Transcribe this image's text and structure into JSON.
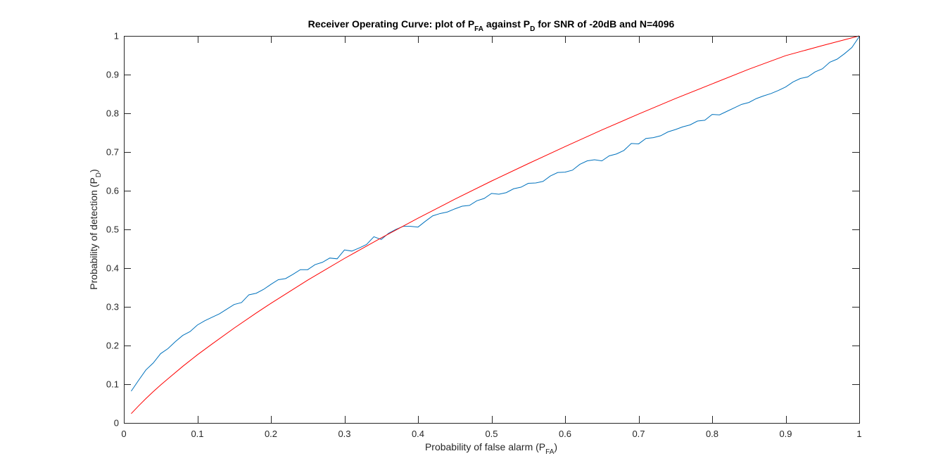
{
  "chart_data": {
    "type": "line",
    "title": {
      "prefix": "Receiver Operating Curve: plot of P",
      "sub1": "FA",
      "middle": " against P",
      "sub2": "D",
      "suffix": " for SNR of -20dB and N=4096"
    },
    "xlabel": {
      "main": "Probability of false alarm (P",
      "sub": "FA",
      "close": ")"
    },
    "ylabel": {
      "main": "Probability of detection (P",
      "sub": "D",
      "close": ")"
    },
    "xlim": [
      0,
      1
    ],
    "ylim": [
      0,
      1
    ],
    "xticks": [
      "0",
      "0.1",
      "0.2",
      "0.3",
      "0.4",
      "0.5",
      "0.6",
      "0.7",
      "0.8",
      "0.9",
      "1"
    ],
    "yticks": [
      "0",
      "0.1",
      "0.2",
      "0.3",
      "0.4",
      "0.5",
      "0.6",
      "0.7",
      "0.8",
      "0.9",
      "1"
    ],
    "grid": false,
    "series": [
      {
        "color": "#0072BD",
        "x": [
          0.01,
          0.02,
          0.03,
          0.04,
          0.05,
          0.06,
          0.07,
          0.08,
          0.09,
          0.1,
          0.11,
          0.12,
          0.13,
          0.14,
          0.15,
          0.16,
          0.17,
          0.18,
          0.19,
          0.2,
          0.21,
          0.22,
          0.23,
          0.24,
          0.25,
          0.26,
          0.27,
          0.28,
          0.29,
          0.3,
          0.31,
          0.32,
          0.33,
          0.34,
          0.35,
          0.36,
          0.37,
          0.38,
          0.39,
          0.4,
          0.41,
          0.42,
          0.43,
          0.44,
          0.45,
          0.46,
          0.47,
          0.48,
          0.49,
          0.5,
          0.51,
          0.52,
          0.53,
          0.54,
          0.55,
          0.56,
          0.57,
          0.58,
          0.59,
          0.6,
          0.61,
          0.62,
          0.63,
          0.64,
          0.65,
          0.66,
          0.67,
          0.68,
          0.69,
          0.7,
          0.71,
          0.72,
          0.73,
          0.74,
          0.75,
          0.76,
          0.77,
          0.78,
          0.79,
          0.8,
          0.81,
          0.82,
          0.83,
          0.84,
          0.85,
          0.86,
          0.87,
          0.88,
          0.89,
          0.9,
          0.91,
          0.92,
          0.93,
          0.94,
          0.95,
          0.96,
          0.97,
          0.98,
          0.99,
          1.0
        ],
        "y": [
          0.082,
          0.11,
          0.137,
          0.155,
          0.179,
          0.192,
          0.21,
          0.226,
          0.236,
          0.253,
          0.264,
          0.273,
          0.282,
          0.294,
          0.306,
          0.311,
          0.331,
          0.335,
          0.345,
          0.358,
          0.37,
          0.373,
          0.384,
          0.396,
          0.396,
          0.409,
          0.415,
          0.426,
          0.424,
          0.447,
          0.444,
          0.452,
          0.461,
          0.481,
          0.474,
          0.49,
          0.5,
          0.508,
          0.508,
          0.506,
          0.521,
          0.535,
          0.541,
          0.545,
          0.553,
          0.56,
          0.562,
          0.574,
          0.58,
          0.593,
          0.591,
          0.595,
          0.605,
          0.609,
          0.619,
          0.62,
          0.624,
          0.638,
          0.647,
          0.648,
          0.653,
          0.668,
          0.677,
          0.68,
          0.677,
          0.69,
          0.695,
          0.704,
          0.722,
          0.721,
          0.735,
          0.737,
          0.742,
          0.752,
          0.758,
          0.765,
          0.77,
          0.78,
          0.782,
          0.797,
          0.796,
          0.805,
          0.814,
          0.823,
          0.828,
          0.838,
          0.845,
          0.851,
          0.859,
          0.868,
          0.881,
          0.89,
          0.894,
          0.907,
          0.915,
          0.932,
          0.94,
          0.954,
          0.97,
          0.998
        ]
      },
      {
        "color": "#FF0000",
        "x": [
          0.01,
          0.02,
          0.03,
          0.04,
          0.05,
          0.06,
          0.08,
          0.1,
          0.12,
          0.15,
          0.18,
          0.2,
          0.25,
          0.3,
          0.35,
          0.4,
          0.45,
          0.5,
          0.55,
          0.6,
          0.65,
          0.7,
          0.75,
          0.8,
          0.85,
          0.9,
          0.95,
          1.0
        ],
        "y": [
          0.024,
          0.044,
          0.063,
          0.081,
          0.098,
          0.114,
          0.146,
          0.176,
          0.204,
          0.245,
          0.284,
          0.309,
          0.369,
          0.425,
          0.478,
          0.529,
          0.578,
          0.625,
          0.67,
          0.714,
          0.757,
          0.798,
          0.838,
          0.876,
          0.914,
          0.949,
          0.975,
          1.0
        ]
      }
    ]
  }
}
